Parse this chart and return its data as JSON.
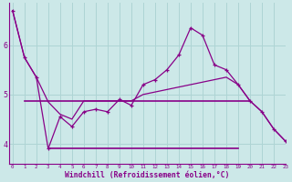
{
  "x": [
    0,
    1,
    2,
    3,
    4,
    5,
    6,
    7,
    8,
    9,
    10,
    11,
    12,
    13,
    14,
    15,
    16,
    17,
    18,
    19,
    20,
    21,
    22,
    23
  ],
  "y_jagged": [
    6.7,
    5.75,
    5.35,
    3.9,
    4.55,
    4.35,
    4.65,
    4.7,
    4.65,
    4.9,
    4.78,
    5.2,
    5.3,
    5.5,
    5.8,
    6.35,
    6.2,
    5.6,
    5.5,
    5.2,
    4.87,
    4.65,
    4.3,
    4.05
  ],
  "y_diag": [
    6.7,
    5.75,
    5.35,
    4.85,
    4.6,
    4.5,
    4.87,
    4.87,
    4.87,
    4.87,
    4.87,
    5.0,
    5.05,
    5.1,
    5.15,
    5.2,
    5.25,
    5.3,
    5.35,
    5.2,
    4.87,
    4.65,
    4.3,
    4.05
  ],
  "y_flat_upper": 4.87,
  "y_flat_lower": 3.9,
  "flat_upper_xstart": 1,
  "flat_upper_xend": 20,
  "flat_lower_xstart": 3,
  "flat_lower_xend": 19,
  "line_color": "#880088",
  "bg_color": "#cce8e8",
  "grid_color": "#b0d8d8",
  "xlabel": "Windchill (Refroidissement éolien,°C)",
  "ylim": [
    3.6,
    6.85
  ],
  "xlim": [
    -0.3,
    23
  ],
  "yticks": [
    4,
    5,
    6
  ],
  "xticks": [
    0,
    1,
    2,
    3,
    4,
    5,
    6,
    7,
    8,
    9,
    10,
    11,
    12,
    13,
    14,
    15,
    16,
    17,
    18,
    19,
    20,
    21,
    22,
    23
  ]
}
